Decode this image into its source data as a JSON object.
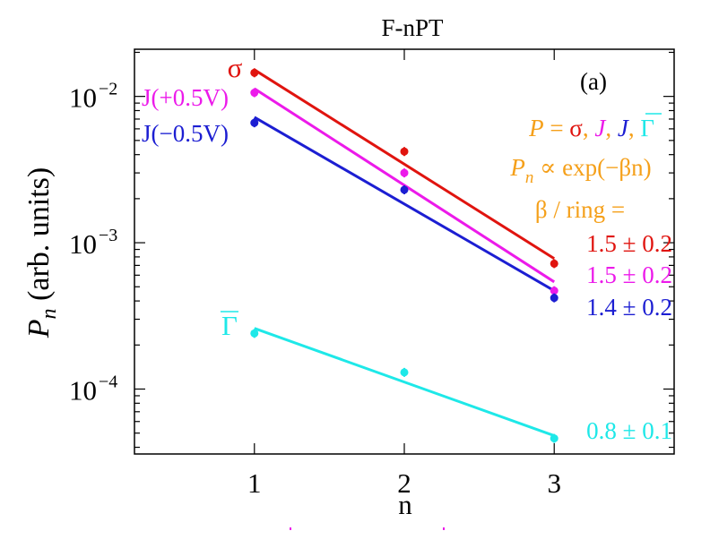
{
  "chart_data": {
    "type": "scatter",
    "title": "F-nPT",
    "panel_label": "(a)",
    "xlabel": "n",
    "ylabel": {
      "symbol": "P",
      "subscript": "n",
      "units": "(arb. units)"
    },
    "x_ticks": [
      1,
      2,
      3
    ],
    "x_tick_labels": [
      "1",
      "2",
      "3"
    ],
    "xlim": [
      0.2,
      3.8
    ],
    "yscale": "log",
    "ylim": [
      3.6e-05,
      0.021
    ],
    "y_tick_labels": [
      {
        "value": 0.01,
        "base": "10",
        "exp": "−2"
      },
      {
        "value": 0.001,
        "base": "10",
        "exp": "−3"
      },
      {
        "value": 0.0001,
        "base": "10",
        "exp": "−4"
      }
    ],
    "grid": false,
    "series": [
      {
        "name": "σ",
        "color": "#e0140f",
        "x": [
          1,
          2,
          3
        ],
        "values": [
          0.0145,
          0.0042,
          0.00072
        ],
        "fit": [
          0.0152,
          0.00078
        ],
        "beta": "1.5 ± 0.2"
      },
      {
        "name": "J(+0.5V)",
        "color": "#ec1aea",
        "x": [
          1,
          2,
          3
        ],
        "values": [
          0.0106,
          0.003,
          0.00047
        ],
        "fit": [
          0.0113,
          0.00054
        ],
        "beta": "1.5 ± 0.2"
      },
      {
        "name": "J(−0.5V)",
        "color": "#1c1ed2",
        "x": [
          1,
          2,
          3
        ],
        "values": [
          0.0066,
          0.0023,
          0.00042
        ],
        "fit": [
          0.0072,
          0.00047
        ],
        "beta": "1.4 ± 0.2"
      },
      {
        "name": "Γ",
        "color": "#1ee8e8",
        "x": [
          1,
          2,
          3
        ],
        "values": [
          0.00024,
          0.00013,
          4.6e-05
        ],
        "fit": [
          0.00026,
          4.8e-05
        ],
        "beta": "0.8 ± 0.1"
      }
    ],
    "annotations": {
      "equation_color": "#f5a01a",
      "p_lhs": "P",
      "p_eq": " = ",
      "p_sigma": "σ",
      "p_comma": ", ",
      "p_j": "J",
      "p_gamma": "Γ",
      "pn_symbol": "P",
      "pn_sub": "n",
      "pn_rhs": " ∝ exp(−βn)",
      "beta_line": "β / ring ="
    }
  }
}
